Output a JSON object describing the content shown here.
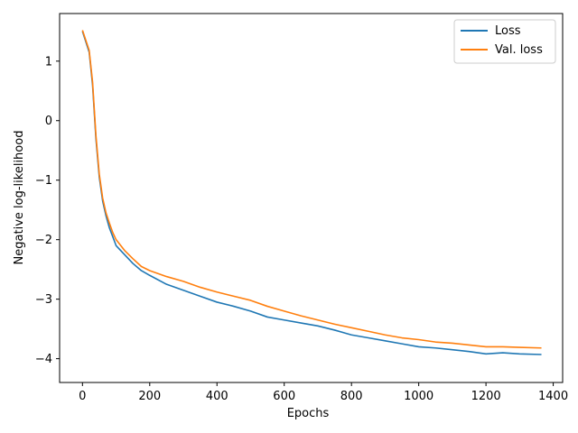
{
  "chart_data": {
    "type": "line",
    "title": "",
    "xlabel": "Epochs",
    "ylabel": "Negative log-likelihood",
    "xlim": [
      -68,
      1428
    ],
    "ylim": [
      -4.4,
      1.8
    ],
    "xticks": [
      0,
      200,
      400,
      600,
      800,
      1000,
      1200,
      1400
    ],
    "yticks": [
      -4,
      -3,
      -2,
      -1,
      0,
      1
    ],
    "xtick_labels": [
      "0",
      "200",
      "400",
      "600",
      "800",
      "1000",
      "1200",
      "1400"
    ],
    "ytick_labels": [
      "−4",
      "−3",
      "−2",
      "−1",
      "0",
      "1"
    ],
    "grid": false,
    "legend_position": "top-right",
    "series": [
      {
        "name": "Loss",
        "color": "#1f77b4",
        "x": [
          0,
          20,
          30,
          40,
          50,
          60,
          70,
          80,
          90,
          100,
          125,
          150,
          175,
          200,
          250,
          300,
          350,
          400,
          450,
          500,
          550,
          600,
          650,
          700,
          750,
          800,
          850,
          900,
          950,
          1000,
          1050,
          1100,
          1150,
          1200,
          1250,
          1300,
          1365
        ],
        "y": [
          1.5,
          1.15,
          0.6,
          -0.3,
          -0.95,
          -1.35,
          -1.6,
          -1.8,
          -1.95,
          -2.1,
          -2.25,
          -2.4,
          -2.52,
          -2.6,
          -2.75,
          -2.85,
          -2.95,
          -3.05,
          -3.12,
          -3.2,
          -3.3,
          -3.35,
          -3.4,
          -3.45,
          -3.52,
          -3.6,
          -3.65,
          -3.7,
          -3.75,
          -3.8,
          -3.82,
          -3.85,
          -3.88,
          -3.92,
          -3.9,
          -3.92,
          -3.93
        ]
      },
      {
        "name": "Val. loss",
        "color": "#ff7f0e",
        "x": [
          0,
          20,
          30,
          40,
          50,
          60,
          70,
          80,
          90,
          100,
          125,
          150,
          175,
          200,
          250,
          300,
          350,
          400,
          450,
          500,
          550,
          600,
          650,
          700,
          750,
          800,
          850,
          900,
          950,
          1000,
          1050,
          1100,
          1150,
          1200,
          1250,
          1300,
          1365
        ],
        "y": [
          1.52,
          1.18,
          0.65,
          -0.25,
          -0.9,
          -1.3,
          -1.55,
          -1.72,
          -1.88,
          -2.0,
          -2.18,
          -2.32,
          -2.45,
          -2.52,
          -2.62,
          -2.7,
          -2.8,
          -2.88,
          -2.95,
          -3.02,
          -3.12,
          -3.2,
          -3.28,
          -3.35,
          -3.42,
          -3.48,
          -3.54,
          -3.6,
          -3.65,
          -3.68,
          -3.72,
          -3.74,
          -3.77,
          -3.8,
          -3.8,
          -3.81,
          -3.82
        ]
      }
    ]
  }
}
